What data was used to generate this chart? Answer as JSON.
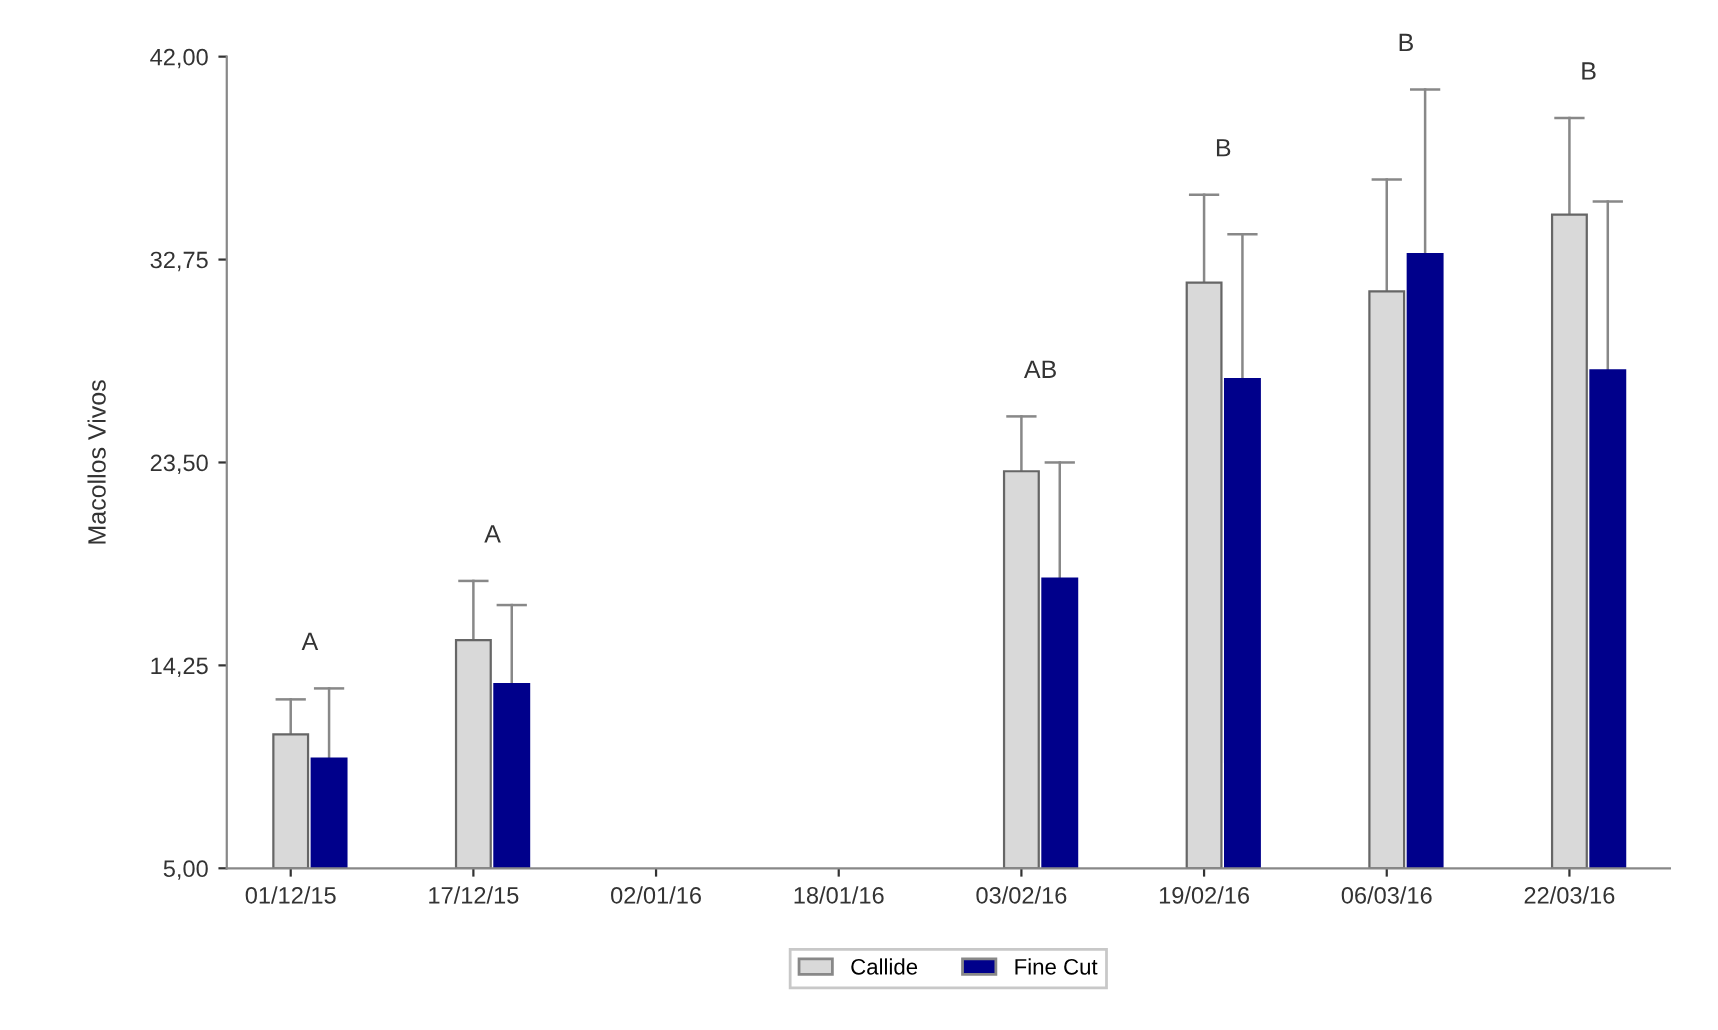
{
  "chart_data": {
    "type": "bar",
    "ylabel": "Macollos Vivos",
    "categories": [
      "01/12/15",
      "17/12/15",
      "02/01/16",
      "18/01/16",
      "03/02/16",
      "19/02/16",
      "06/03/16",
      "22/03/16"
    ],
    "series": [
      {
        "name": "Callide",
        "color": "#d9d9d9",
        "values": [
          11.1,
          15.4,
          null,
          null,
          23.1,
          31.7,
          31.3,
          34.8
        ],
        "errors": [
          [
            11.1,
            12.7
          ],
          [
            15.4,
            18.1
          ],
          null,
          null,
          [
            23.1,
            25.6
          ],
          [
            31.7,
            35.7
          ],
          [
            31.3,
            36.4
          ],
          [
            34.8,
            39.2
          ]
        ]
      },
      {
        "name": "Fine Cut",
        "color": "#00008b",
        "values": [
          10.0,
          13.4,
          null,
          null,
          18.2,
          27.3,
          33.0,
          27.7
        ],
        "errors": [
          [
            10.0,
            13.2
          ],
          [
            13.4,
            17.0
          ],
          null,
          null,
          [
            18.2,
            23.5
          ],
          [
            27.3,
            33.9
          ],
          [
            33.0,
            40.5
          ],
          [
            27.7,
            35.4
          ]
        ]
      }
    ],
    "ylim": [
      5,
      42
    ],
    "yticks": [
      {
        "value": 5,
        "label": "5,00"
      },
      {
        "value": 14.25,
        "label": "14,25"
      },
      {
        "value": 23.5,
        "label": "23,50"
      },
      {
        "value": 32.75,
        "label": "32,75"
      },
      {
        "value": 42,
        "label": "42,00"
      }
    ],
    "annotations": [
      "A",
      "A",
      "AB",
      "B",
      "B",
      "B"
    ],
    "grid": false,
    "legend": "bottom"
  }
}
